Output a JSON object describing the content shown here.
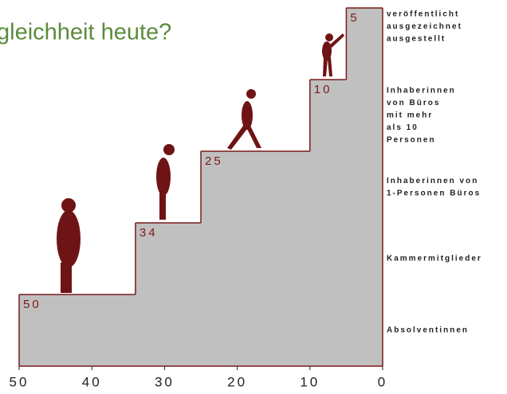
{
  "chart_data": {
    "type": "staircase",
    "title": "gleichheit heute?",
    "categories": [
      [
        "Absolventinnen"
      ],
      [
        "Kammermitglieder"
      ],
      [
        "Inhaberinnen von",
        "1-Personen Büros"
      ],
      [
        "Inhaberinnen",
        "von Büros",
        "mit mehr",
        "als 10",
        "Personen"
      ],
      [
        "veröffentlicht",
        "ausgezeichnet",
        "ausgestellt"
      ]
    ],
    "values": [
      50,
      34,
      25,
      10,
      5
    ],
    "xlim": [
      50,
      0
    ],
    "xticks": [
      50,
      40,
      30,
      20,
      10,
      0
    ],
    "color": "#c0c0c0",
    "outline": "#7a1a1a"
  }
}
